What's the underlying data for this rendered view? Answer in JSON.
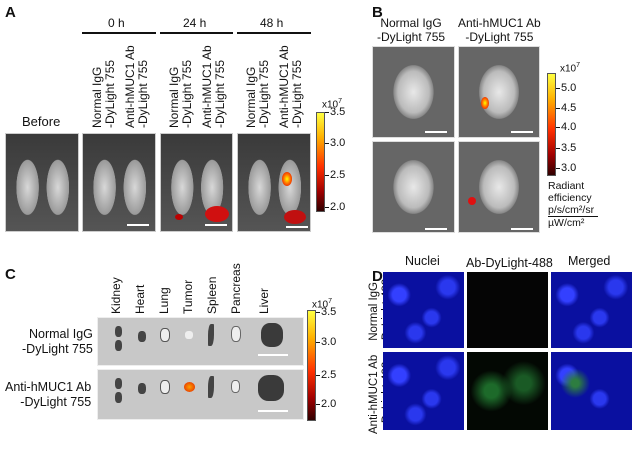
{
  "panelA": {
    "label": "A",
    "before": "Before",
    "timepoints": [
      "0 h",
      "24 h",
      "48 h"
    ],
    "group1": "Normal IgG\n-DyLight 755",
    "group2": "Anti-hMUC1 Ab\n-DyLight 755",
    "colorbar": {
      "exponent": "x10",
      "exp_sup": "7",
      "ticks": [
        "3.5",
        "3.0",
        "2.5",
        "2.0"
      ]
    }
  },
  "panelB": {
    "label": "B",
    "col1": "Normal IgG\n-DyLight 755",
    "col2": "Anti-hMUC1 Ab\n-DyLight 755",
    "colorbar": {
      "exponent": "x10",
      "exp_sup": "7",
      "ticks": [
        "5.0",
        "4.5",
        "4.0",
        "3.5",
        "3.0"
      ]
    },
    "unit_l1": "Radiant",
    "unit_l2": "efficiency",
    "unit_num": "p/s/cm²/sr",
    "unit_den": "µW/cm²"
  },
  "panelC": {
    "label": "C",
    "organs": [
      "Kidney",
      "Heart",
      "Lung",
      "Tumor",
      "Spleen",
      "Pancreas",
      "Liver"
    ],
    "row1": "Normal IgG\n-DyLight 755",
    "row2": "Anti-hMUC1 Ab\n-DyLight 755",
    "colorbar": {
      "exponent": "x10",
      "exp_sup": "7",
      "ticks": [
        "3.5",
        "3.0",
        "2.5",
        "2.0"
      ]
    }
  },
  "panelD": {
    "label": "D",
    "columns": [
      "Nuclei",
      "Ab-DyLight-488",
      "Merged"
    ],
    "row1": "Normal IgG\n-DyLight 488",
    "row2": "Anti-hMUC1 Ab\n-DyLight 488"
  }
}
